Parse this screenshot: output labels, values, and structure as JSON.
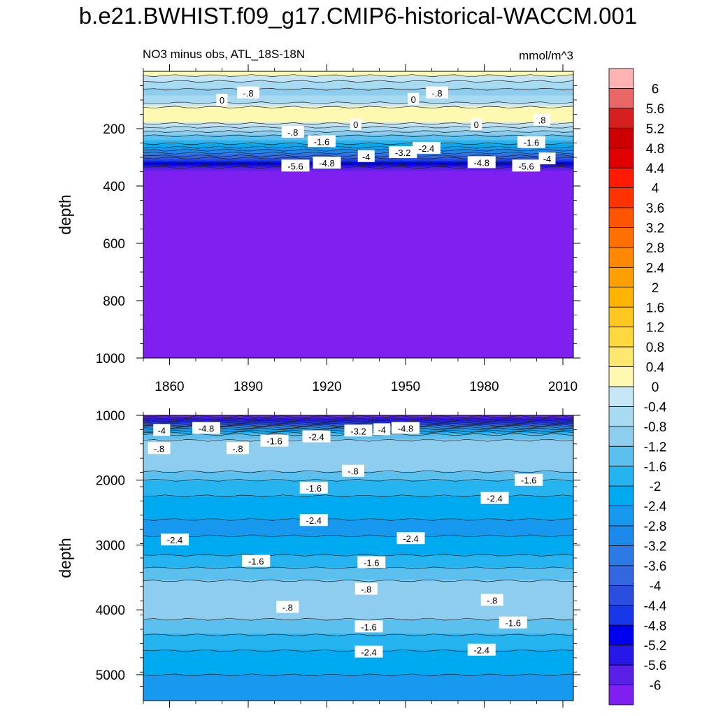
{
  "title": "b.e21.BWHIST.f09_g17.CMIP6-historical-WACCM.001",
  "chart_data": [
    {
      "type": "heatmap",
      "panel": "upper",
      "subtitle_left": "NO3 minus obs, ATL_18S-18N",
      "subtitle_right": "mmol/m^3",
      "ylabel": "depth",
      "xlabel": "",
      "xlim": [
        1850,
        2014
      ],
      "ylim": [
        1000,
        0
      ],
      "x_ticks": [
        "1860",
        "1890",
        "1920",
        "1950",
        "1980",
        "2010"
      ],
      "y_ticks": [
        "200",
        "400",
        "600",
        "800",
        "1000"
      ],
      "profile": [
        {
          "depth": 0,
          "value": 0.3
        },
        {
          "depth": 40,
          "value": -0.5
        },
        {
          "depth": 75,
          "value": -1.0
        },
        {
          "depth": 100,
          "value": -0.6
        },
        {
          "depth": 140,
          "value": 0.4
        },
        {
          "depth": 170,
          "value": 0.3
        },
        {
          "depth": 200,
          "value": -0.6
        },
        {
          "depth": 240,
          "value": -1.6
        },
        {
          "depth": 280,
          "value": -3.0
        },
        {
          "depth": 310,
          "value": -4.4
        },
        {
          "depth": 330,
          "value": -5.4
        },
        {
          "depth": 345,
          "value": -6.0
        },
        {
          "depth": 1000,
          "value": -6.2
        }
      ],
      "contour_labels": [
        {
          "x": 1880,
          "depth": 100,
          "text": "0"
        },
        {
          "x": 1890,
          "depth": 75,
          "text": "-.8"
        },
        {
          "x": 1953,
          "depth": 97,
          "text": "0"
        },
        {
          "x": 1962,
          "depth": 75,
          "text": "-.8"
        },
        {
          "x": 1907,
          "depth": 212,
          "text": "-.8"
        },
        {
          "x": 1931,
          "depth": 185,
          "text": "0"
        },
        {
          "x": 1977,
          "depth": 185,
          "text": "0"
        },
        {
          "x": 2002,
          "depth": 170,
          "text": ".8"
        },
        {
          "x": 1918,
          "depth": 245,
          "text": "-1.6"
        },
        {
          "x": 1998,
          "depth": 248,
          "text": "-1.6"
        },
        {
          "x": 1958,
          "depth": 268,
          "text": "-2.4"
        },
        {
          "x": 1949,
          "depth": 283,
          "text": "-3.2"
        },
        {
          "x": 1935,
          "depth": 297,
          "text": "-4"
        },
        {
          "x": 2004,
          "depth": 305,
          "text": "-4"
        },
        {
          "x": 1920,
          "depth": 320,
          "text": "-4.8"
        },
        {
          "x": 1979,
          "depth": 318,
          "text": "-4.8"
        },
        {
          "x": 1908,
          "depth": 330,
          "text": "-5.6"
        },
        {
          "x": 1996,
          "depth": 330,
          "text": "-5.6"
        }
      ]
    },
    {
      "type": "heatmap",
      "panel": "lower",
      "ylabel": "depth",
      "xlim": [
        1850,
        2014
      ],
      "ylim": [
        5400,
        1000
      ],
      "y_ticks": [
        "1000",
        "2000",
        "3000",
        "4000",
        "5000"
      ],
      "profile": [
        {
          "depth": 1000,
          "value": -6.2
        },
        {
          "depth": 1100,
          "value": -5.0
        },
        {
          "depth": 1180,
          "value": -3.2
        },
        {
          "depth": 1300,
          "value": -1.4
        },
        {
          "depth": 1500,
          "value": -0.9
        },
        {
          "depth": 1800,
          "value": -1.0
        },
        {
          "depth": 2000,
          "value": -1.6
        },
        {
          "depth": 2300,
          "value": -2.1
        },
        {
          "depth": 2700,
          "value": -2.5
        },
        {
          "depth": 3000,
          "value": -2.3
        },
        {
          "depth": 3300,
          "value": -1.7
        },
        {
          "depth": 3600,
          "value": -1.1
        },
        {
          "depth": 3900,
          "value": -0.8
        },
        {
          "depth": 4200,
          "value": -1.3
        },
        {
          "depth": 4500,
          "value": -1.8
        },
        {
          "depth": 4800,
          "value": -2.3
        },
        {
          "depth": 5400,
          "value": -2.6
        }
      ],
      "contour_labels": [
        {
          "x": 1857,
          "depth": 1230,
          "text": "-4"
        },
        {
          "x": 1874,
          "depth": 1200,
          "text": "-4.8"
        },
        {
          "x": 1932,
          "depth": 1240,
          "text": "-3.2"
        },
        {
          "x": 1941,
          "depth": 1220,
          "text": "-4"
        },
        {
          "x": 1950,
          "depth": 1200,
          "text": "-4.8"
        },
        {
          "x": 1856,
          "depth": 1510,
          "text": "-.8"
        },
        {
          "x": 1886,
          "depth": 1510,
          "text": "-.8"
        },
        {
          "x": 1900,
          "depth": 1395,
          "text": "-1.6"
        },
        {
          "x": 1916,
          "depth": 1330,
          "text": "-2.4"
        },
        {
          "x": 1930,
          "depth": 1860,
          "text": "-.8"
        },
        {
          "x": 1915,
          "depth": 2120,
          "text": "-1.6"
        },
        {
          "x": 1997,
          "depth": 2000,
          "text": "-1.6"
        },
        {
          "x": 1984,
          "depth": 2280,
          "text": "-2.4"
        },
        {
          "x": 1915,
          "depth": 2620,
          "text": "-2.4"
        },
        {
          "x": 1862,
          "depth": 2920,
          "text": "-2.4"
        },
        {
          "x": 1952,
          "depth": 2900,
          "text": "-2.4"
        },
        {
          "x": 1893,
          "depth": 3250,
          "text": "-1.6"
        },
        {
          "x": 1937,
          "depth": 3270,
          "text": "-1.6"
        },
        {
          "x": 1935,
          "depth": 3680,
          "text": "-.8"
        },
        {
          "x": 1983,
          "depth": 3850,
          "text": "-.8"
        },
        {
          "x": 1905,
          "depth": 3960,
          "text": "-.8"
        },
        {
          "x": 1936,
          "depth": 4260,
          "text": "-1.6"
        },
        {
          "x": 1991,
          "depth": 4200,
          "text": "-1.6"
        },
        {
          "x": 1936,
          "depth": 4650,
          "text": "-2.4"
        },
        {
          "x": 1979,
          "depth": 4620,
          "text": "-2.4"
        }
      ]
    }
  ],
  "colorbar": {
    "labels": [
      "6",
      "5.6",
      "5.2",
      "4.8",
      "4.4",
      "4",
      "3.6",
      "3.2",
      "2.8",
      "2.4",
      "2",
      "1.6",
      "1.2",
      "0.8",
      "0.4",
      "0",
      "-0.4",
      "-0.8",
      "-1.2",
      "-1.6",
      "-2",
      "-2.4",
      "-2.8",
      "-3.2",
      "-3.6",
      "-4",
      "-4.4",
      "-4.8",
      "-5.2",
      "-5.6",
      "-6"
    ],
    "colors": [
      "#ffb3b3",
      "#e86666",
      "#d62020",
      "#cc0000",
      "#e00000",
      "#ff1a00",
      "#ff3300",
      "#ff5500",
      "#ff7000",
      "#ff8800",
      "#ffa000",
      "#ffb400",
      "#ffc820",
      "#ffd840",
      "#ffe870",
      "#fff8b0",
      "#c6e6f5",
      "#a8daf2",
      "#8fcdef",
      "#5cc0ef",
      "#25b4ef",
      "#00aaf0",
      "#1598ee",
      "#1b8aec",
      "#2b7ae6",
      "#3366e0",
      "#2a4ee0",
      "#1738e8",
      "#0000f0",
      "#2818e8",
      "#5a20e8",
      "#8020f0"
    ]
  }
}
